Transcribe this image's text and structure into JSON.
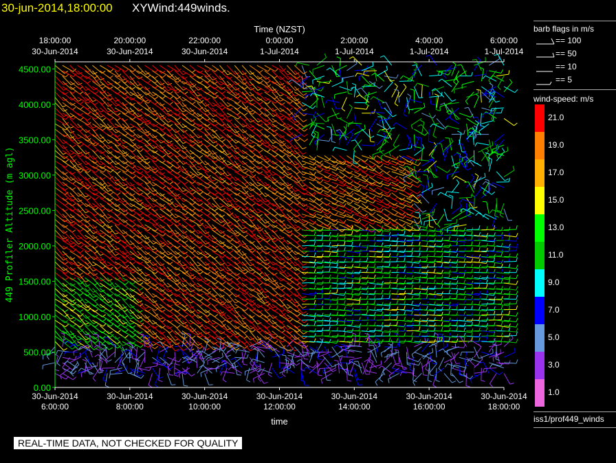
{
  "header": {
    "date": "30-jun-2014,18:00:00",
    "name": "XYWind:449winds."
  },
  "notice": "REAL-TIME DATA, NOT CHECKED FOR QUALITY",
  "legend": {
    "flags_title": "barb flags in m/s",
    "flags": [
      "== 100",
      "== 50",
      "== 10",
      "== 5"
    ],
    "speed_title": "wind-speed: m/s",
    "speed_bins": [
      {
        "label": "21.0",
        "color": "#ff0000"
      },
      {
        "label": "19.0",
        "color": "#ff8000"
      },
      {
        "label": "17.0",
        "color": "#ffb000"
      },
      {
        "label": "15.0",
        "color": "#ffff00"
      },
      {
        "label": "13.0",
        "color": "#00ff00"
      },
      {
        "label": "11.0",
        "color": "#00cc00"
      },
      {
        "label": "9.0",
        "color": "#00ffff"
      },
      {
        "label": "7.0",
        "color": "#0000ff"
      },
      {
        "label": "5.0",
        "color": "#6699dd"
      },
      {
        "label": "3.0",
        "color": "#9933ee"
      },
      {
        "label": "1.0",
        "color": "#ee66dd"
      }
    ],
    "source": "iss1/prof449_winds"
  },
  "chart_data": {
    "type": "scatter",
    "title": "",
    "ylabel": "449 Profiler Altitude (m agl)",
    "xlabel": "time",
    "top_axis_title": "Time (NZST)",
    "ylim": [
      0,
      4600
    ],
    "xlim": [
      0,
      12
    ],
    "y_ticks": [
      "0.00",
      "500.00",
      "1000.00",
      "1500.00",
      "2000.00",
      "2500.00",
      "3000.00",
      "3500.00",
      "4000.00",
      "4500.00"
    ],
    "x_ticks_bottom": [
      [
        "30-Jun-2014",
        "6:00:00"
      ],
      [
        "30-Jun-2014",
        "8:00:00"
      ],
      [
        "30-Jun-2014",
        "10:00:00"
      ],
      [
        "30-Jun-2014",
        "12:00:00"
      ],
      [
        "30-Jun-2014",
        "14:00:00"
      ],
      [
        "30-Jun-2014",
        "16:00:00"
      ],
      [
        "30-Jun-2014",
        "18:00:00"
      ]
    ],
    "x_ticks_top": [
      [
        "18:00:00",
        "30-Jun-2014"
      ],
      [
        "20:00:00",
        "30-Jun-2014"
      ],
      [
        "22:00:00",
        "30-Jun-2014"
      ],
      [
        "0:00:00",
        "1-Jul-2014"
      ],
      [
        "2:00:00",
        "1-Jul-2014"
      ],
      [
        "4:00:00",
        "1-Jul-2014"
      ],
      [
        "6:00:00",
        "1-Jul-2014"
      ]
    ],
    "grid": false,
    "description_regimes": [
      {
        "x_range": [
          0,
          6.5
        ],
        "y_range": [
          700,
          4600
        ],
        "speed_mps": 21
      },
      {
        "x_range": [
          6.5,
          12
        ],
        "y_range": [
          700,
          2300
        ],
        "speed_mps": 13
      },
      {
        "x_range": [
          0,
          12
        ],
        "y_range": [
          200,
          650
        ],
        "speed_mps": 4
      }
    ]
  }
}
